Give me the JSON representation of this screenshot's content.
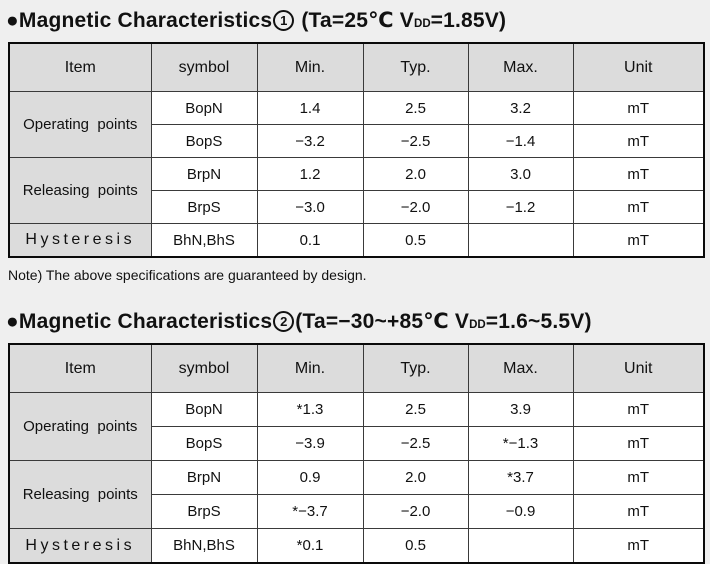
{
  "titles": [
    {
      "bullet": "●",
      "name": "Magnetic Characteristics",
      "number": "1",
      "cond_pre": " (Ta=25℃ ",
      "v": "V",
      "v_sub": "DD",
      "cond_post": "=1.85V)"
    },
    {
      "bullet": "●",
      "name": "Magnetic Characteristics",
      "number": "2",
      "cond_pre": "(Ta=−30~+85℃ ",
      "v": "V",
      "v_sub": "DD",
      "cond_post": "=1.6~5.5V)"
    }
  ],
  "note": "Note) The above specifications are guaranteed by design.",
  "tables": [
    {
      "headers": [
        "Item",
        "symbol",
        "Min.",
        "Typ.",
        "Max.",
        "Unit"
      ],
      "groups": [
        {
          "item": "Operating  points",
          "spaced": false,
          "rows": [
            [
              "BopN",
              "1.4",
              "2.5",
              "3.2",
              "mT"
            ],
            [
              "BopS",
              "−3.2",
              "−2.5",
              "−1.4",
              "mT"
            ]
          ]
        },
        {
          "item": "Releasing  points",
          "spaced": false,
          "rows": [
            [
              "BrpN",
              "1.2",
              "2.0",
              "3.0",
              "mT"
            ],
            [
              "BrpS",
              "−3.0",
              "−2.0",
              "−1.2",
              "mT"
            ]
          ]
        },
        {
          "item": "Hysteresis",
          "spaced": true,
          "rows": [
            [
              "BhN,BhS",
              "0.1",
              "0.5",
              "",
              "mT"
            ]
          ]
        }
      ]
    },
    {
      "headers": [
        "Item",
        "symbol",
        "Min.",
        "Typ.",
        "Max.",
        "Unit"
      ],
      "groups": [
        {
          "item": "Operating  points",
          "spaced": false,
          "rows": [
            [
              "BopN",
              "*1.3",
              "2.5",
              "3.9",
              "mT"
            ],
            [
              "BopS",
              "−3.9",
              "−2.5",
              "*−1.3",
              "mT"
            ]
          ]
        },
        {
          "item": "Releasing  points",
          "spaced": false,
          "rows": [
            [
              "BrpN",
              "0.9",
              "2.0",
              "*3.7",
              "mT"
            ],
            [
              "BrpS",
              "*−3.7",
              "−2.0",
              "−0.9",
              "mT"
            ]
          ]
        },
        {
          "item": "Hysteresis",
          "spaced": true,
          "rows": [
            [
              "BhN,BhS",
              "*0.1",
              "0.5",
              "",
              "mT"
            ]
          ]
        }
      ]
    }
  ]
}
